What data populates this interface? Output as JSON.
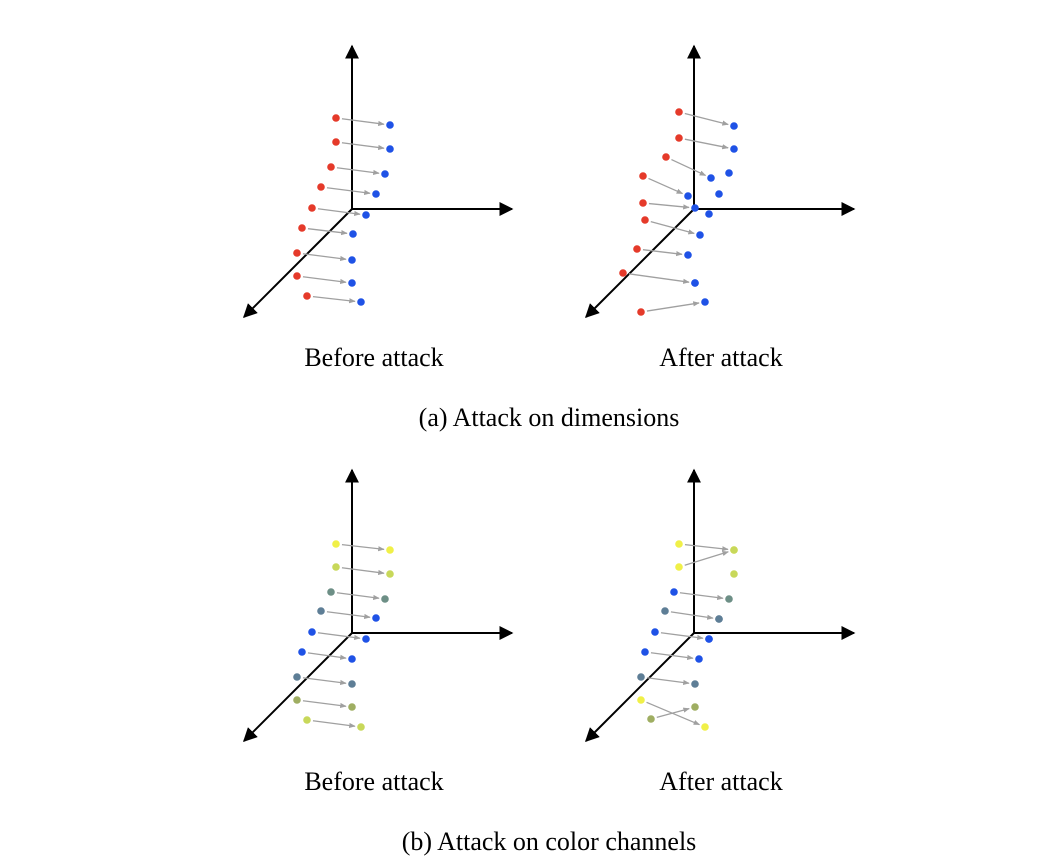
{
  "captions": {
    "a": "(a) Attack on dimensions",
    "b": "(b) Attack on color channels"
  },
  "labels": {
    "before": "Before attack",
    "after": "After attack"
  },
  "colors": {
    "axis": "#000000",
    "arrow": "#a0a0a0",
    "red": "#e53a2a",
    "blue": "#1f52e6",
    "yellow": "#f0f048",
    "yellow_green": "#c8d85a",
    "olive": "#9fae62",
    "slate": "#5e7e96",
    "teal_gray": "#6d8f86"
  },
  "panels": [
    {
      "id": "a-before",
      "pairs": [
        {
          "src": "red",
          "dst": "blue"
        },
        {
          "src": "red",
          "dst": "blue"
        },
        {
          "src": "red",
          "dst": "blue"
        },
        {
          "src": "red",
          "dst": "blue"
        },
        {
          "src": "red",
          "dst": "blue"
        },
        {
          "src": "red",
          "dst": "blue"
        },
        {
          "src": "red",
          "dst": "blue"
        },
        {
          "src": "red",
          "dst": "blue"
        },
        {
          "src": "red",
          "dst": "blue"
        }
      ]
    },
    {
      "id": "a-after",
      "pairs": [
        {
          "src": "red",
          "dst": "blue"
        },
        {
          "src": "red",
          "dst": "blue"
        },
        {
          "src": "red",
          "dst": "blue"
        },
        {
          "src": "red",
          "dst": "blue"
        },
        {
          "src": "red",
          "dst": "blue"
        },
        {
          "src": "red",
          "dst": "blue"
        },
        {
          "src": "red",
          "dst": "blue"
        },
        {
          "src": "red",
          "dst": "blue"
        },
        {
          "src": "red",
          "dst": "blue"
        }
      ]
    },
    {
      "id": "b-before",
      "pairs": [
        {
          "src": "yellow",
          "dst": "yellow"
        },
        {
          "src": "yellow_green",
          "dst": "yellow_green"
        },
        {
          "src": "teal_gray",
          "dst": "teal_gray"
        },
        {
          "src": "slate",
          "dst": "blue"
        },
        {
          "src": "blue",
          "dst": "blue"
        },
        {
          "src": "blue",
          "dst": "blue"
        },
        {
          "src": "slate",
          "dst": "slate"
        },
        {
          "src": "olive",
          "dst": "olive"
        },
        {
          "src": "yellow_green",
          "dst": "yellow_green"
        }
      ]
    },
    {
      "id": "b-after",
      "pairs": [
        {
          "src": "yellow",
          "dst": "yellow"
        },
        {
          "src": "yellow",
          "dst": "yellow_green"
        },
        {
          "src": "blue",
          "dst": "teal_gray"
        },
        {
          "src": "slate",
          "dst": "slate"
        },
        {
          "src": "blue",
          "dst": "blue"
        },
        {
          "src": "blue",
          "dst": "blue"
        },
        {
          "src": "slate",
          "dst": "slate"
        },
        {
          "src": "yellow",
          "dst": "yellow"
        },
        {
          "src": "olive",
          "dst": "olive"
        }
      ]
    }
  ]
}
